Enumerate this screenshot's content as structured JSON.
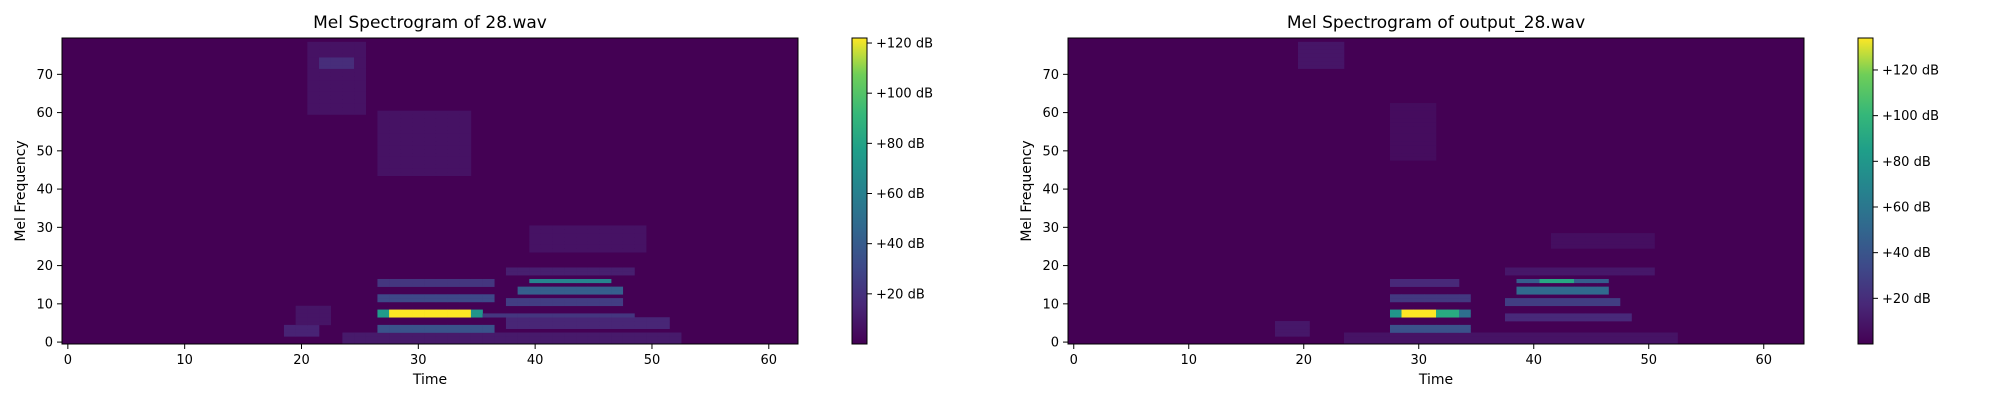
{
  "chart_data": [
    {
      "type": "heatmap",
      "title": "Mel Spectrogram of 28.wav",
      "xlabel": "Time",
      "ylabel": "Mel Frequency",
      "xlim": [
        -0.5,
        62.5
      ],
      "ylim": [
        -0.5,
        79.5
      ],
      "xticks": [
        0,
        10,
        20,
        30,
        40,
        50,
        60
      ],
      "yticks": [
        0,
        10,
        20,
        30,
        40,
        50,
        60,
        70
      ],
      "colormap": "viridis",
      "colorbar": {
        "range": [
          0,
          122
        ],
        "ticks": [
          20,
          40,
          60,
          80,
          100,
          120
        ],
        "tick_labels": [
          "+20 dB",
          "+40 dB",
          "+60 dB",
          "+80 dB",
          "+100 dB",
          "+120 dB"
        ]
      },
      "n_time": 63,
      "n_mels": 80,
      "blobs": [
        {
          "t": [
            28,
            34
          ],
          "f": [
            7,
            8
          ],
          "v": 122
        },
        {
          "t": [
            27,
            28
          ],
          "f": [
            7,
            8
          ],
          "v": 75
        },
        {
          "t": [
            34,
            35
          ],
          "f": [
            7,
            8
          ],
          "v": 72
        },
        {
          "t": [
            27,
            36
          ],
          "f": [
            3,
            4
          ],
          "v": 35
        },
        {
          "t": [
            27,
            36
          ],
          "f": [
            11,
            12
          ],
          "v": 30
        },
        {
          "t": [
            27,
            36
          ],
          "f": [
            15,
            16
          ],
          "v": 22
        },
        {
          "t": [
            36,
            48
          ],
          "f": [
            7,
            7
          ],
          "v": 22
        },
        {
          "t": [
            40,
            46
          ],
          "f": [
            16,
            16
          ],
          "v": 62
        },
        {
          "t": [
            39,
            47
          ],
          "f": [
            13,
            14
          ],
          "v": 42
        },
        {
          "t": [
            38,
            47
          ],
          "f": [
            10,
            11
          ],
          "v": 25
        },
        {
          "t": [
            38,
            51
          ],
          "f": [
            4,
            6
          ],
          "v": 15
        },
        {
          "t": [
            38,
            48
          ],
          "f": [
            18,
            19
          ],
          "v": 12
        },
        {
          "t": [
            40,
            49
          ],
          "f": [
            24,
            30
          ],
          "v": 7
        },
        {
          "t": [
            22,
            24
          ],
          "f": [
            72,
            74
          ],
          "v": 18
        },
        {
          "t": [
            21,
            25
          ],
          "f": [
            60,
            78
          ],
          "v": 7
        },
        {
          "t": [
            27,
            34
          ],
          "f": [
            44,
            60
          ],
          "v": 7
        },
        {
          "t": [
            19,
            21
          ],
          "f": [
            2,
            4
          ],
          "v": 14
        },
        {
          "t": [
            20,
            22
          ],
          "f": [
            5,
            9
          ],
          "v": 8
        },
        {
          "t": [
            24,
            52
          ],
          "f": [
            0,
            2
          ],
          "v": 10
        }
      ]
    },
    {
      "type": "heatmap",
      "title": "Mel Spectrogram of output_28.wav",
      "xlabel": "Time",
      "ylabel": "Mel Frequency",
      "xlim": [
        -0.5,
        63.5
      ],
      "ylim": [
        -0.5,
        79.5
      ],
      "xticks": [
        0,
        10,
        20,
        30,
        40,
        50,
        60
      ],
      "yticks": [
        0,
        10,
        20,
        30,
        40,
        50,
        60,
        70
      ],
      "colormap": "viridis",
      "colorbar": {
        "range": [
          0,
          134
        ],
        "ticks": [
          20,
          40,
          60,
          80,
          100,
          120
        ],
        "tick_labels": [
          "+20 dB",
          "+40 dB",
          "+60 dB",
          "+80 dB",
          "+100 dB",
          "+120 dB"
        ]
      },
      "n_time": 64,
      "n_mels": 80,
      "blobs": [
        {
          "t": [
            29,
            31
          ],
          "f": [
            7,
            8
          ],
          "v": 134
        },
        {
          "t": [
            28,
            29
          ],
          "f": [
            7,
            8
          ],
          "v": 80
        },
        {
          "t": [
            31,
            33
          ],
          "f": [
            7,
            8
          ],
          "v": 92
        },
        {
          "t": [
            33,
            34
          ],
          "f": [
            7,
            8
          ],
          "v": 55
        },
        {
          "t": [
            28,
            34
          ],
          "f": [
            3,
            4
          ],
          "v": 38
        },
        {
          "t": [
            28,
            34
          ],
          "f": [
            11,
            12
          ],
          "v": 25
        },
        {
          "t": [
            28,
            33
          ],
          "f": [
            15,
            16
          ],
          "v": 18
        },
        {
          "t": [
            41,
            43
          ],
          "f": [
            16,
            16
          ],
          "v": 90
        },
        {
          "t": [
            39,
            46
          ],
          "f": [
            16,
            16
          ],
          "v": 45
        },
        {
          "t": [
            39,
            46
          ],
          "f": [
            13,
            14
          ],
          "v": 52
        },
        {
          "t": [
            38,
            47
          ],
          "f": [
            10,
            11
          ],
          "v": 28
        },
        {
          "t": [
            38,
            48
          ],
          "f": [
            6,
            7
          ],
          "v": 18
        },
        {
          "t": [
            38,
            50
          ],
          "f": [
            18,
            19
          ],
          "v": 10
        },
        {
          "t": [
            42,
            50
          ],
          "f": [
            25,
            28
          ],
          "v": 6
        },
        {
          "t": [
            20,
            23
          ],
          "f": [
            72,
            78
          ],
          "v": 9
        },
        {
          "t": [
            18,
            20
          ],
          "f": [
            2,
            5
          ],
          "v": 10
        },
        {
          "t": [
            24,
            52
          ],
          "f": [
            0,
            2
          ],
          "v": 8
        },
        {
          "t": [
            28,
            31
          ],
          "f": [
            48,
            62
          ],
          "v": 5
        }
      ]
    }
  ]
}
